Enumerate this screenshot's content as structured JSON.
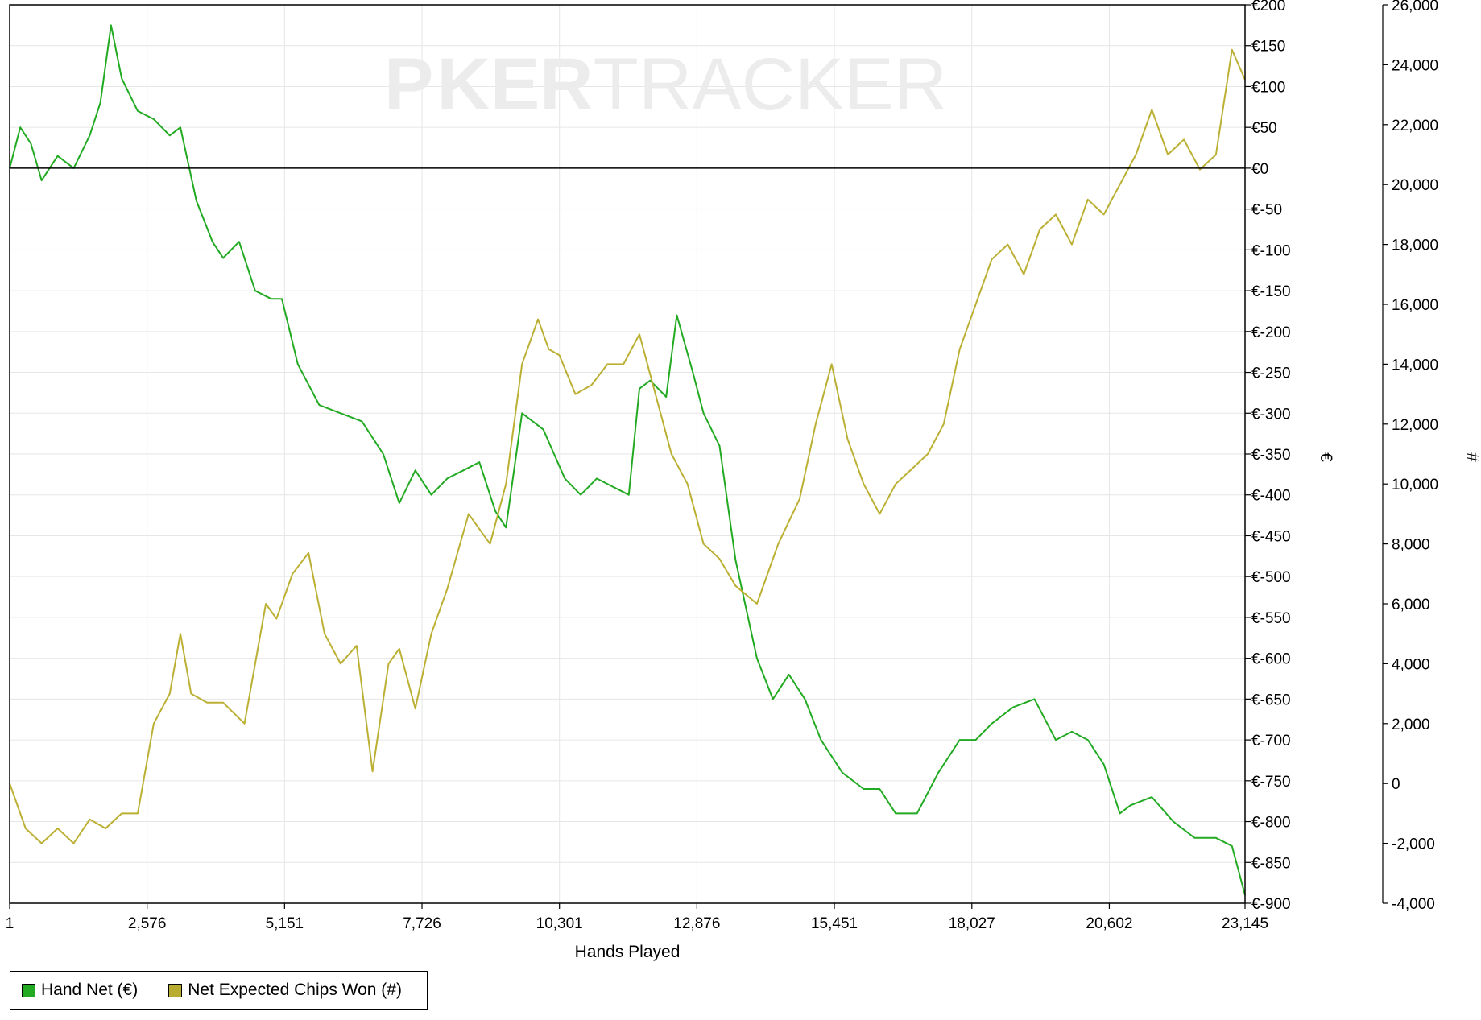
{
  "watermark": {
    "bold": "P",
    "bold_rest": "KER",
    "light": "TRACKER"
  },
  "chart_data": {
    "type": "line",
    "xlabel": "Hands Played",
    "x_ticks": [
      "1",
      "2,576",
      "5,151",
      "7,726",
      "10,301",
      "12,876",
      "15,451",
      "18,027",
      "20,602",
      "23,145"
    ],
    "x_range": [
      1,
      23145
    ],
    "y_left": {
      "label": "€",
      "range": [
        -900,
        200
      ],
      "ticks": [
        "€200",
        "€150",
        "€100",
        "€50",
        "€0",
        "€-50",
        "€-100",
        "€-150",
        "€-200",
        "€-250",
        "€-300",
        "€-350",
        "€-400",
        "€-450",
        "€-500",
        "€-550",
        "€-600",
        "€-650",
        "€-700",
        "€-750",
        "€-800",
        "€-850",
        "€-900"
      ]
    },
    "y_right": {
      "label": "#",
      "range": [
        -4000,
        26000
      ],
      "ticks": [
        "26,000",
        "24,000",
        "22,000",
        "20,000",
        "18,000",
        "16,000",
        "14,000",
        "12,000",
        "10,000",
        "8,000",
        "6,000",
        "4,000",
        "2,000",
        "0",
        "-2,000",
        "-4,000"
      ]
    },
    "grid": true,
    "legend_position": "bottom-left",
    "series": [
      {
        "name": "Hand Net (€)",
        "axis": "left",
        "color": "#22aa22",
        "x": [
          1,
          200,
          400,
          600,
          900,
          1200,
          1500,
          1700,
          1900,
          2100,
          2400,
          2700,
          3000,
          3200,
          3500,
          3800,
          4000,
          4300,
          4600,
          4900,
          5100,
          5400,
          5800,
          6200,
          6600,
          7000,
          7300,
          7600,
          7900,
          8200,
          8500,
          8800,
          9100,
          9300,
          9600,
          9800,
          10000,
          10400,
          10700,
          11000,
          11300,
          11600,
          11800,
          12000,
          12300,
          12500,
          12800,
          13000,
          13300,
          13600,
          14000,
          14300,
          14600,
          14900,
          15200,
          15600,
          16000,
          16300,
          16600,
          17000,
          17400,
          17800,
          18100,
          18400,
          18800,
          19200,
          19600,
          19900,
          20200,
          20500,
          20800,
          21000,
          21400,
          21800,
          22200,
          22600,
          22900,
          23145
        ],
        "y": [
          0,
          50,
          30,
          -15,
          15,
          0,
          40,
          80,
          175,
          110,
          70,
          60,
          40,
          50,
          -40,
          -90,
          -110,
          -90,
          -150,
          -160,
          -160,
          -240,
          -290,
          -300,
          -310,
          -350,
          -410,
          -370,
          -400,
          -380,
          -370,
          -360,
          -420,
          -440,
          -300,
          -310,
          -320,
          -380,
          -400,
          -380,
          -390,
          -400,
          -270,
          -260,
          -280,
          -180,
          -250,
          -300,
          -340,
          -480,
          -600,
          -650,
          -620,
          -650,
          -700,
          -740,
          -760,
          -760,
          -790,
          -790,
          -740,
          -700,
          -700,
          -680,
          -660,
          -650,
          -700,
          -690,
          -700,
          -730,
          -790,
          -780,
          -770,
          -800,
          -820,
          -820,
          -830,
          -890
        ]
      },
      {
        "name": "Net Expected Chips Won (#)",
        "axis": "right",
        "color": "#bbb033",
        "x": [
          1,
          300,
          600,
          900,
          1200,
          1500,
          1800,
          2100,
          2400,
          2700,
          3000,
          3200,
          3400,
          3700,
          4000,
          4400,
          4800,
          5000,
          5300,
          5600,
          5900,
          6200,
          6500,
          6800,
          7100,
          7300,
          7600,
          7900,
          8200,
          8600,
          9000,
          9300,
          9600,
          9900,
          10100,
          10300,
          10600,
          10900,
          11200,
          11500,
          11800,
          12100,
          12400,
          12700,
          13000,
          13300,
          13600,
          14000,
          14400,
          14800,
          15100,
          15400,
          15700,
          16000,
          16300,
          16600,
          16900,
          17200,
          17500,
          17800,
          18100,
          18400,
          18700,
          19000,
          19300,
          19600,
          19900,
          20200,
          20500,
          20800,
          21100,
          21400,
          21700,
          22000,
          22300,
          22600,
          22900,
          23145
        ],
        "y": [
          0,
          -1500,
          -2000,
          -1500,
          -2000,
          -1200,
          -1500,
          -1000,
          -1000,
          2000,
          3000,
          5000,
          3000,
          2700,
          2700,
          2000,
          6000,
          5500,
          7000,
          7700,
          5000,
          4000,
          4600,
          400,
          4000,
          4500,
          2500,
          5000,
          6500,
          9000,
          8000,
          10000,
          14000,
          15500,
          14500,
          14300,
          13000,
          13300,
          14000,
          14000,
          15000,
          13000,
          11000,
          10000,
          8000,
          7500,
          6600,
          6000,
          8000,
          9500,
          12000,
          14000,
          11500,
          10000,
          9000,
          10000,
          10500,
          11000,
          12000,
          14500,
          16000,
          17500,
          18000,
          17000,
          18500,
          19000,
          18000,
          19500,
          19000,
          20000,
          21000,
          22500,
          21000,
          21500,
          20500,
          21000,
          24500,
          23500
        ]
      }
    ]
  }
}
